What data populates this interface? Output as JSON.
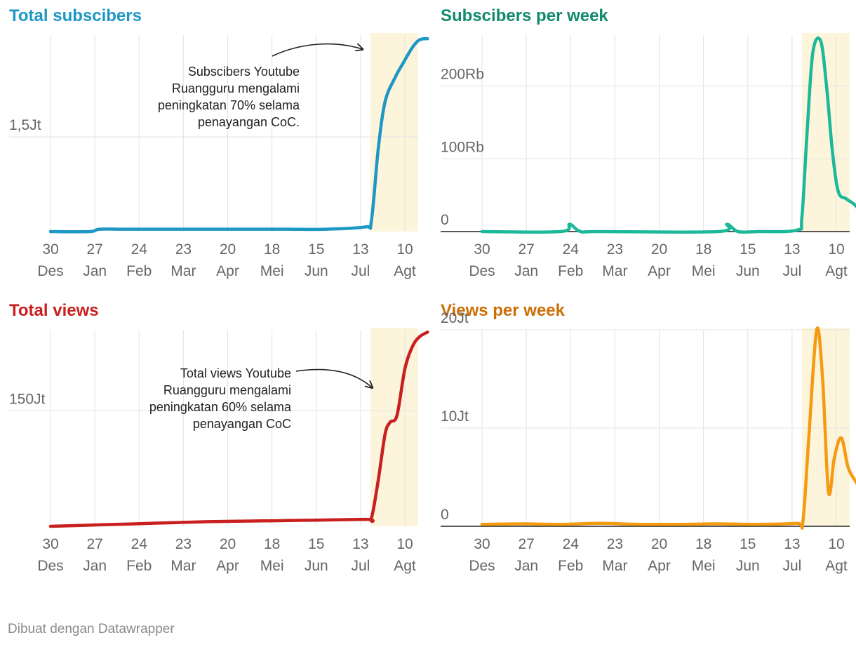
{
  "footer": "Dibuat dengan Datawrapper",
  "colors": {
    "highlight_band": "#fdf4dc",
    "gridline": "#e3e3e3",
    "baseline": "#222222",
    "tick_text": "#666666",
    "annotation_text": "#222222"
  },
  "chart_data": [
    {
      "id": "total-subscribers",
      "type": "line",
      "title": "Total subscibers",
      "title_color": "#1d97c4",
      "line_color": "#1d97c4",
      "x_ticks": [
        {
          "day": "30",
          "month": "Des"
        },
        {
          "day": "27",
          "month": "Jan"
        },
        {
          "day": "24",
          "month": "Feb"
        },
        {
          "day": "23",
          "month": "Mar"
        },
        {
          "day": "20",
          "month": "Apr"
        },
        {
          "day": "18",
          "month": "Mei"
        },
        {
          "day": "15",
          "month": "Jun"
        },
        {
          "day": "13",
          "month": "Jul"
        },
        {
          "day": "10",
          "month": "Agt"
        }
      ],
      "x_domain_weeks": [
        0,
        36
      ],
      "highlight_weeks": [
        32.5,
        37.5
      ],
      "ylim": [
        1100000,
        1930000
      ],
      "y_ticks": [
        {
          "value": 1500000,
          "label": "1,5Jt"
        }
      ],
      "baseline": false,
      "series": [
        {
          "x": [
            0,
            4,
            5,
            8,
            16,
            20,
            24,
            28,
            32,
            32.6,
            33.3,
            34,
            35,
            35.8,
            36.8,
            37.5,
            38.3
          ],
          "y": [
            1100000,
            1100000,
            1110000,
            1110000,
            1110000,
            1110000,
            1110000,
            1110000,
            1120000,
            1145000,
            1450000,
            1650000,
            1750000,
            1810000,
            1880000,
            1910000,
            1915000
          ]
        }
      ],
      "annotation": {
        "lines": [
          "Subscibers Youtube",
          "Ruangguru mengalami",
          "peningkatan 70% selama",
          "penayangan CoC."
        ]
      }
    },
    {
      "id": "subscribers-per-week",
      "type": "line",
      "title": "Subscibers per week",
      "title_color": "#128a6c",
      "line_color": "#1bb899",
      "x_ticks": [
        {
          "day": "30",
          "month": "Des"
        },
        {
          "day": "27",
          "month": "Jan"
        },
        {
          "day": "24",
          "month": "Feb"
        },
        {
          "day": "23",
          "month": "Mar"
        },
        {
          "day": "20",
          "month": "Apr"
        },
        {
          "day": "18",
          "month": "Mei"
        },
        {
          "day": "15",
          "month": "Jun"
        },
        {
          "day": "13",
          "month": "Jul"
        },
        {
          "day": "10",
          "month": "Agt"
        }
      ],
      "x_domain_weeks": [
        0,
        36
      ],
      "highlight_weeks": [
        32.5,
        39.3
      ],
      "ylim": [
        0,
        270000
      ],
      "y_ticks": [
        {
          "value": 0,
          "label": "0"
        },
        {
          "value": 100000,
          "label": "100Rb"
        },
        {
          "value": 200000,
          "label": "200Rb"
        }
      ],
      "baseline": true,
      "series": [
        {
          "x": [
            0,
            8,
            8.9,
            10,
            12,
            24,
            24.9,
            26,
            28,
            32,
            32.5,
            33,
            33.6,
            34.4,
            35,
            35.6,
            36.2,
            37,
            38,
            39.3
          ],
          "y": [
            0,
            0,
            10000,
            0,
            0,
            0,
            10000,
            0,
            0,
            2000,
            20000,
            130000,
            245000,
            262000,
            200000,
            110000,
            55000,
            45000,
            35000,
            10000
          ]
        }
      ]
    },
    {
      "id": "total-views",
      "type": "line",
      "title": "Total views",
      "title_color": "#c91f1f",
      "line_color": "#c91f1f",
      "x_ticks": [
        {
          "day": "30",
          "month": "Des"
        },
        {
          "day": "27",
          "month": "Jan"
        },
        {
          "day": "24",
          "month": "Feb"
        },
        {
          "day": "23",
          "month": "Mar"
        },
        {
          "day": "20",
          "month": "Apr"
        },
        {
          "day": "18",
          "month": "Mei"
        },
        {
          "day": "15",
          "month": "Jun"
        },
        {
          "day": "13",
          "month": "Jul"
        },
        {
          "day": "10",
          "month": "Agt"
        }
      ],
      "x_domain_weeks": [
        0,
        36
      ],
      "highlight_weeks": [
        32.5,
        37.5
      ],
      "ylim": [
        100000000,
        185000000
      ],
      "y_ticks": [
        {
          "value": 150000000,
          "label": "150Jt"
        }
      ],
      "baseline": false,
      "series": [
        {
          "x": [
            0,
            8,
            16,
            24,
            32,
            32.6,
            33.3,
            34,
            34.5,
            35.2,
            36,
            36.8,
            37.5,
            38.3
          ],
          "y": [
            100000000,
            101000000,
            102000000,
            102500000,
            103000000,
            103500000,
            120000000,
            140000000,
            145000000,
            148000000,
            168000000,
            178000000,
            182000000,
            184000000
          ]
        }
      ],
      "annotation": {
        "lines": [
          "Total views Youtube",
          "Ruangguru mengalami",
          "peningkatan 60% selama",
          "penayangan CoC"
        ]
      }
    },
    {
      "id": "views-per-week",
      "type": "line",
      "title": "Views per week",
      "title_color": "#cc6e06",
      "line_color": "#f59b12",
      "x_ticks": [
        {
          "day": "30",
          "month": "Des"
        },
        {
          "day": "27",
          "month": "Jan"
        },
        {
          "day": "24",
          "month": "Feb"
        },
        {
          "day": "23",
          "month": "Mar"
        },
        {
          "day": "20",
          "month": "Apr"
        },
        {
          "day": "18",
          "month": "Mei"
        },
        {
          "day": "15",
          "month": "Jun"
        },
        {
          "day": "13",
          "month": "Jul"
        },
        {
          "day": "10",
          "month": "Agt"
        }
      ],
      "x_domain_weeks": [
        0,
        36
      ],
      "highlight_weeks": [
        32.5,
        39.3
      ],
      "ylim": [
        0,
        20000000
      ],
      "y_ticks": [
        {
          "value": 0,
          "label": "0"
        },
        {
          "value": 10000000,
          "label": "10Jt"
        },
        {
          "value": 20000000,
          "label": "20Jt"
        }
      ],
      "baseline": true,
      "series": [
        {
          "x": [
            0,
            4,
            8,
            12,
            16,
            20,
            24,
            28,
            32,
            32.6,
            33.2,
            34,
            34.6,
            35.2,
            35.8,
            36.5,
            37.2,
            38,
            39.3
          ],
          "y": [
            200000,
            250000,
            200000,
            300000,
            200000,
            200000,
            250000,
            200000,
            300000,
            500000,
            9000000,
            20000000,
            15000000,
            3500000,
            7000000,
            9000000,
            6000000,
            4500000,
            2500000
          ]
        }
      ]
    }
  ]
}
